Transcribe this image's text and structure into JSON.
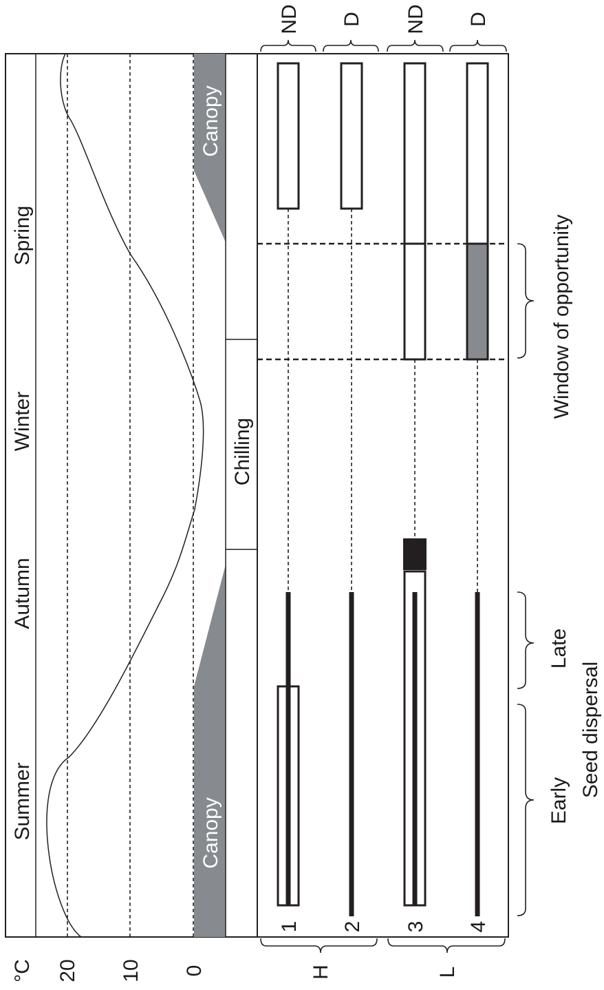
{
  "axis": {
    "unit": "°C",
    "ticks": [
      "20",
      "10",
      "0"
    ]
  },
  "seasons": [
    "Summer",
    "Autumn",
    "Winter",
    "Spring"
  ],
  "bands": {
    "canopy_label": "Canopy",
    "chilling_label": "Chilling"
  },
  "rows": [
    {
      "number": "1",
      "dormancy": "ND"
    },
    {
      "number": "2",
      "dormancy": "D"
    },
    {
      "number": "3",
      "dormancy": "ND"
    },
    {
      "number": "4",
      "dormancy": "D"
    }
  ],
  "groups": {
    "h_label": "H",
    "l_label": "L"
  },
  "annotations": {
    "window": "Window of opportunity",
    "early": "Early",
    "late": "Late",
    "seed_dispersal": "Seed dispersal"
  },
  "colors": {
    "canopy": "#878b90",
    "line": "#231f20",
    "filled": "#231f20",
    "window_fill": "#878b90"
  }
}
